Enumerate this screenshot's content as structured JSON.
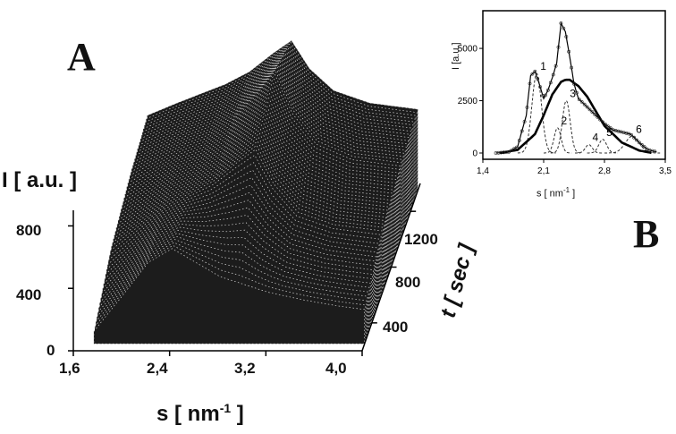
{
  "panels": {
    "a_label": "A",
    "b_label": "B"
  },
  "chart_data": [
    {
      "type": "area",
      "panel": "A",
      "xlabel": "s [ nm",
      "xlabel_sup": "-1",
      "xlabel_end": " ]",
      "ylabel": "I [ a.u. ]",
      "zlabel": "t [ sec ]",
      "x_ticks": [
        "1,6",
        "2,4",
        "3,2",
        "4,0"
      ],
      "y_ticks": [
        "0",
        "400",
        "800"
      ],
      "z_ticks": [
        "400",
        "800",
        "1200"
      ],
      "xlim": [
        1.6,
        4.0
      ],
      "ylim": [
        0,
        900
      ],
      "zlim": [
        200,
        1400
      ],
      "series": [
        {
          "t": 250,
          "x": [
            1.75,
            2.0,
            2.2,
            2.4,
            2.6,
            2.8,
            3.0,
            3.2,
            3.5,
            3.8,
            4.0
          ],
          "values": [
            80,
            320,
            520,
            610,
            520,
            430,
            380,
            330,
            280,
            240,
            220
          ]
        },
        {
          "t": 600,
          "x": [
            1.75,
            2.0,
            2.2,
            2.4,
            2.6,
            2.8,
            2.95,
            3.1,
            3.3,
            3.6,
            4.0
          ],
          "values": [
            300,
            440,
            560,
            640,
            720,
            840,
            920,
            700,
            520,
            440,
            400
          ]
        },
        {
          "t": 1000,
          "x": [
            1.75,
            2.0,
            2.2,
            2.4,
            2.6,
            2.8,
            2.95,
            3.1,
            3.3,
            3.6,
            4.0
          ],
          "values": [
            420,
            520,
            600,
            660,
            760,
            930,
            1080,
            820,
            620,
            520,
            480
          ]
        },
        {
          "t": 1350,
          "x": [
            1.75,
            2.0,
            2.2,
            2.4,
            2.6,
            2.8,
            2.95,
            3.1,
            3.3,
            3.6,
            4.0
          ],
          "values": [
            480,
            560,
            620,
            680,
            760,
            880,
            960,
            780,
            640,
            560,
            520
          ]
        }
      ]
    },
    {
      "type": "line",
      "panel": "B",
      "xlabel": "s [ nm",
      "xlabel_sup": "-1",
      "xlabel_end": " ]",
      "ylabel": "I  [a.u.]",
      "x_ticks": [
        "1,4",
        "2,1",
        "2,8",
        "3,5"
      ],
      "x_tick_values": [
        1.4,
        2.1,
        2.8,
        3.5
      ],
      "y_ticks": [
        "0",
        "2500",
        "5000"
      ],
      "y_tick_values": [
        0,
        2500,
        5000
      ],
      "xlim": [
        1.4,
        3.5
      ],
      "ylim": [
        -300,
        6800
      ],
      "peak_labels": [
        "1",
        "2",
        "3",
        "4",
        "5",
        "6"
      ],
      "data": {
        "x": [
          1.55,
          1.7,
          1.8,
          1.9,
          1.95,
          2.0,
          2.05,
          2.1,
          2.15,
          2.2,
          2.25,
          2.3,
          2.35,
          2.4,
          2.45,
          2.5,
          2.55,
          2.6,
          2.7,
          2.8,
          2.9,
          3.0,
          3.1,
          3.2,
          3.3,
          3.4
        ],
        "values": [
          0,
          50,
          300,
          1800,
          3700,
          3900,
          3300,
          2600,
          3000,
          3600,
          4300,
          6200,
          5800,
          4600,
          3300,
          2600,
          2400,
          2200,
          1800,
          1400,
          1100,
          1000,
          900,
          500,
          150,
          50
        ]
      },
      "envelope": {
        "x": [
          1.6,
          1.8,
          2.0,
          2.1,
          2.2,
          2.3,
          2.35,
          2.4,
          2.5,
          2.6,
          2.7,
          2.8,
          3.0,
          3.2,
          3.35
        ],
        "values": [
          0,
          150,
          900,
          1800,
          2800,
          3400,
          3500,
          3500,
          3200,
          2700,
          2000,
          1300,
          500,
          120,
          0
        ]
      },
      "peaks": [
        {
          "label": "1",
          "center": 2.02,
          "amplitude": 3800,
          "width": 0.055
        },
        {
          "label": "2",
          "center": 2.26,
          "amplitude": 1200,
          "width": 0.04
        },
        {
          "label": "3",
          "center": 2.36,
          "amplitude": 2500,
          "width": 0.045
        },
        {
          "label": "4",
          "center": 2.62,
          "amplitude": 400,
          "width": 0.04
        },
        {
          "label": "5",
          "center": 2.78,
          "amplitude": 650,
          "width": 0.045
        },
        {
          "label": "6",
          "center": 3.12,
          "amplitude": 800,
          "width": 0.08
        }
      ]
    }
  ]
}
